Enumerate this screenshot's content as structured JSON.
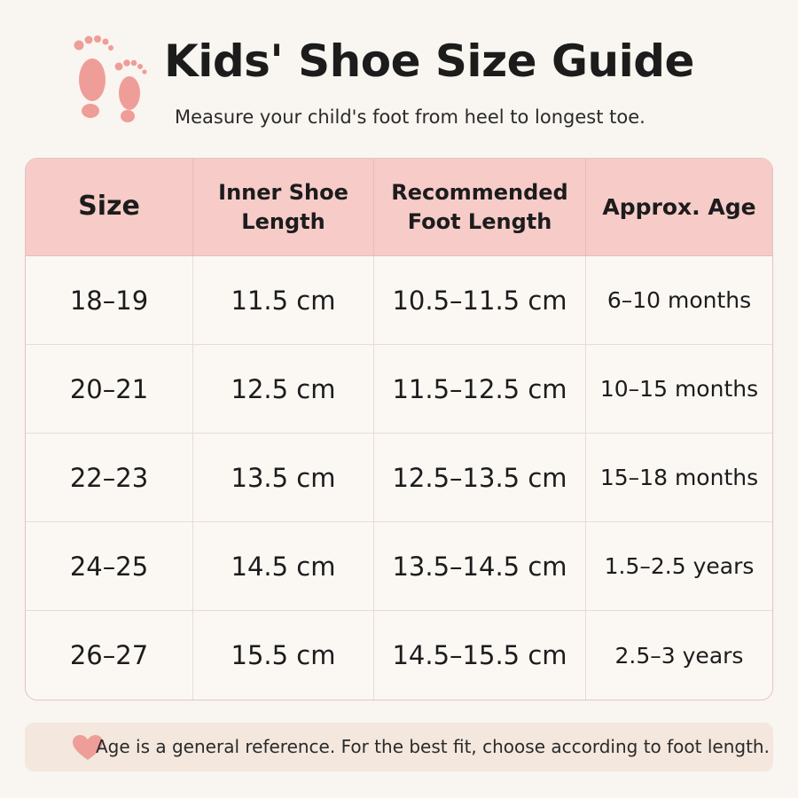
{
  "header": {
    "title": "Kids' Shoe Size Guide",
    "subtitle": "Measure your child's foot from heel to longest toe."
  },
  "table": {
    "columns": [
      "Size",
      "Inner Shoe Length",
      "Recommended Foot Length",
      "Approx. Age"
    ],
    "rows": [
      [
        "18–19",
        "11.5 cm",
        "10.5–11.5 cm",
        "6–10 months"
      ],
      [
        "20–21",
        "12.5 cm",
        "11.5–12.5 cm",
        "10–15 months"
      ],
      [
        "22–23",
        "13.5 cm",
        "12.5–13.5 cm",
        "15–18 months"
      ],
      [
        "24–25",
        "14.5 cm",
        "13.5–14.5 cm",
        "1.5–2.5 years"
      ],
      [
        "26–27",
        "15.5 cm",
        "14.5–15.5 cm",
        "2.5–3 years"
      ]
    ]
  },
  "footer": {
    "note": "Age is a general reference. For the best fit, choose according to foot length."
  }
}
